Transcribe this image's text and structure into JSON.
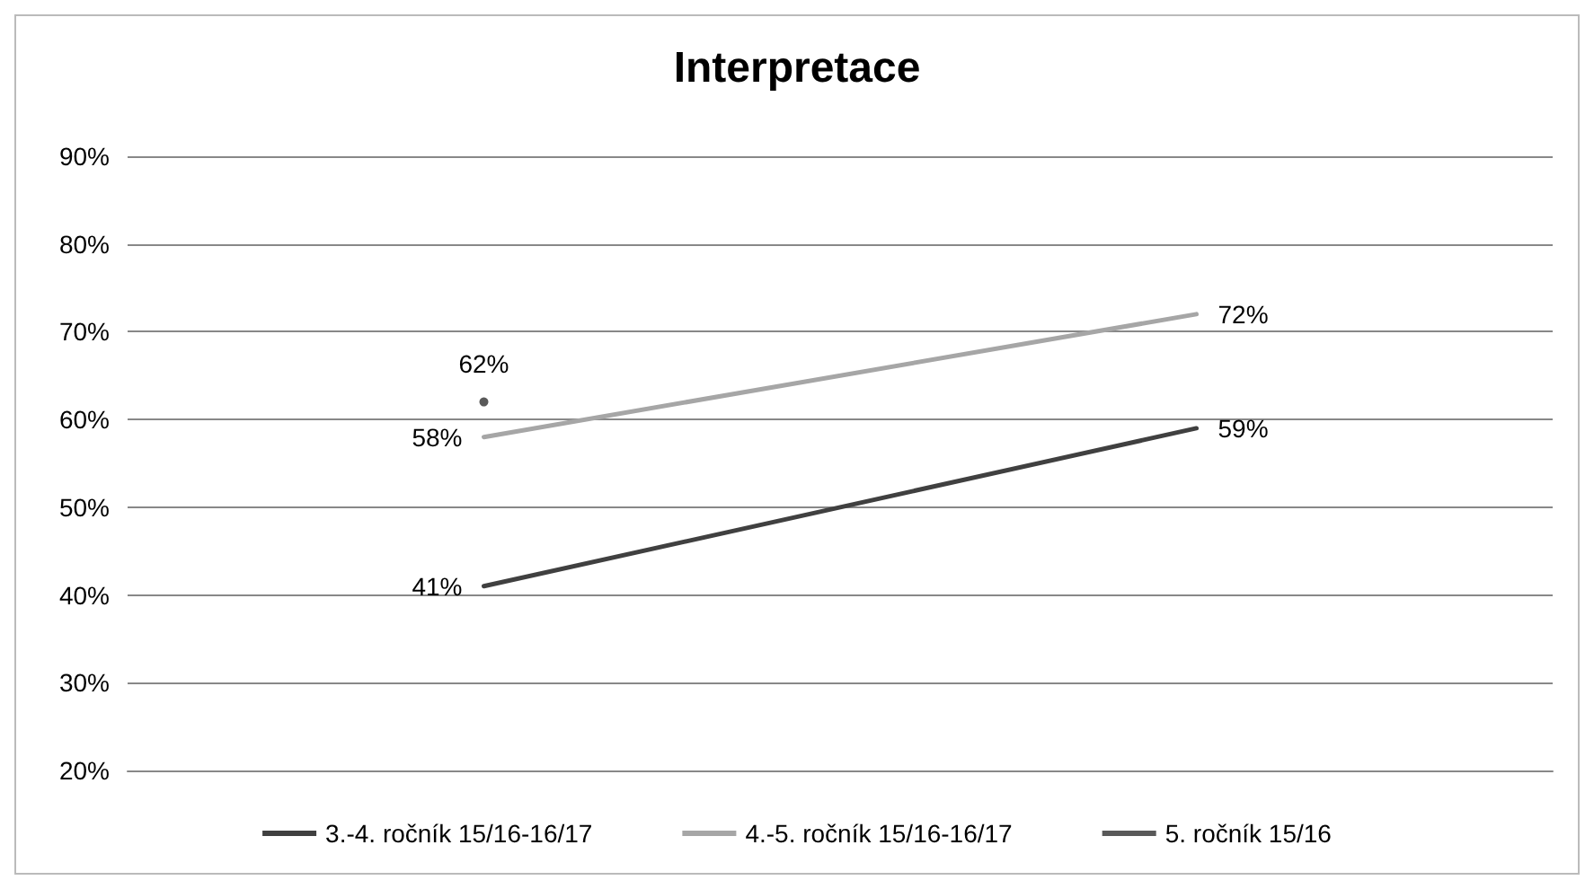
{
  "chart_data": {
    "type": "line",
    "title": "Interpretace",
    "categories": [
      null,
      null
    ],
    "series": [
      {
        "name": "3.-4. ročník 15/16-16/17",
        "color": "#404040",
        "values": [
          41,
          59
        ],
        "value_labels": [
          "41%",
          "59%"
        ]
      },
      {
        "name": "4.-5. ročník 15/16-16/17",
        "color": "#a6a6a6",
        "values": [
          58,
          72
        ],
        "value_labels": [
          "58%",
          "72%"
        ]
      },
      {
        "name": "5. ročník 15/16",
        "color": "#595959",
        "marker": "circle",
        "values": [
          62,
          null
        ],
        "value_labels": [
          "62%",
          null
        ]
      }
    ],
    "ylim": [
      20,
      90
    ],
    "yticks": [
      {
        "value": 20,
        "label": "20%"
      },
      {
        "value": 30,
        "label": "30%"
      },
      {
        "value": 40,
        "label": "40%"
      },
      {
        "value": 50,
        "label": "50%"
      },
      {
        "value": 60,
        "label": "60%"
      },
      {
        "value": 70,
        "label": "70%"
      },
      {
        "value": 80,
        "label": "80%"
      },
      {
        "value": 90,
        "label": "90%"
      }
    ],
    "grid": "y",
    "legend": "bottom",
    "marker": "none",
    "line_style": "solid"
  }
}
